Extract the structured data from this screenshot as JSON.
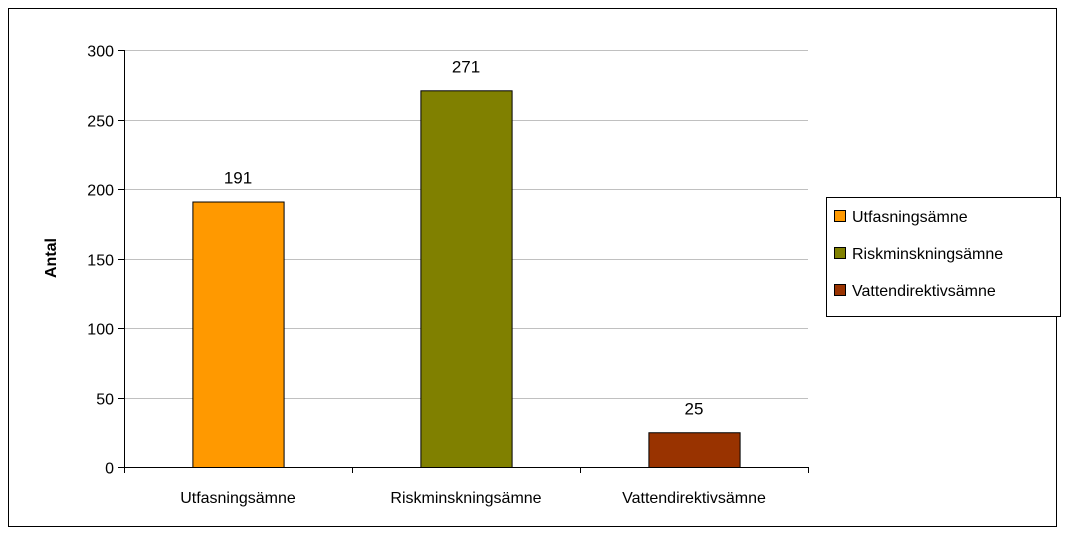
{
  "chart_data": {
    "type": "bar",
    "categories": [
      "Utfasningsämne",
      "Riskminskningsämne",
      "Vattendirektivsämne"
    ],
    "values": [
      191,
      271,
      25
    ],
    "data_labels": [
      "191",
      "271",
      "25"
    ],
    "colors": [
      "#FF9900",
      "#808000",
      "#993300"
    ],
    "title": "",
    "xlabel": "",
    "ylabel": "Antal",
    "ylim": [
      0,
      300
    ],
    "yticks": [
      0,
      50,
      100,
      150,
      200,
      250,
      300
    ],
    "grid": true,
    "legend": {
      "placement": "right",
      "entries": [
        "Utfasningsämne",
        "Riskminskningsämne",
        "Vattendirektivsämne"
      ]
    }
  }
}
